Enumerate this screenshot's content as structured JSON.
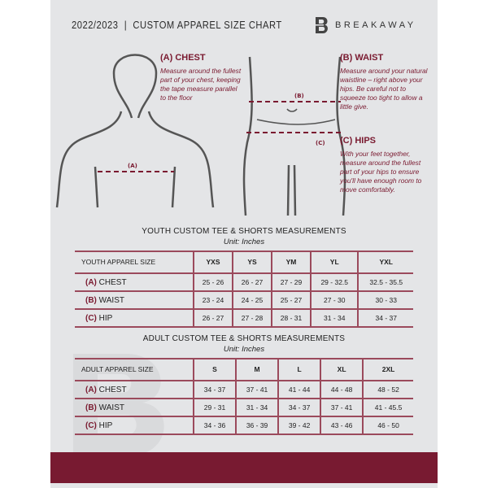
{
  "header": {
    "title": "2022/2023  |  CUSTOM APPAREL SIZE CHART",
    "brand": "BREAKAWAY",
    "logo_letter": "B"
  },
  "guide": {
    "chest": {
      "heading": "(A) CHEST",
      "text": "Measure around the fullest part of your chest, keeping the tape measure parallel to the floor",
      "marker": "(A)"
    },
    "waist": {
      "heading": "(B) WAIST",
      "text": "Measure around your natural waistline – right above your hips. Be careful not to squeeze too tight to allow a little give.",
      "marker": "(B)"
    },
    "hips": {
      "heading": "(C) HIPS",
      "text": "With your feet together, measure around the fullest part of your hips to ensure you'll have enough room to move comfortably.",
      "marker": "(C)"
    }
  },
  "youth": {
    "title": "YOUTH CUSTOM TEE & SHORTS MEASUREMENTS",
    "unit": "Unit: Inches",
    "header": "YOUTH APPAREL SIZE",
    "sizes": [
      "YXS",
      "YS",
      "YM",
      "YL",
      "YXL"
    ],
    "rows": [
      {
        "letter": "(A)",
        "name": "CHEST",
        "values": [
          "25 - 26",
          "26 - 27",
          "27 - 29",
          "29 - 32.5",
          "32.5 - 35.5"
        ]
      },
      {
        "letter": "(B)",
        "name": "WAIST",
        "values": [
          "23 - 24",
          "24 - 25",
          "25 - 27",
          "27 - 30",
          "30 - 33"
        ]
      },
      {
        "letter": "(C)",
        "name": "HIP",
        "values": [
          "26 - 27",
          "27 - 28",
          "28 - 31",
          "31 - 34",
          "34 - 37"
        ]
      }
    ]
  },
  "adult": {
    "title": "ADULT CUSTOM TEE & SHORTS MEASUREMENTS",
    "unit": "Unit: Inches",
    "header": "ADULT APPAREL SIZE",
    "sizes": [
      "S",
      "M",
      "L",
      "XL",
      "2XL"
    ],
    "rows": [
      {
        "letter": "(A)",
        "name": "CHEST",
        "values": [
          "34 - 37",
          "37 - 41",
          "41 - 44",
          "44 - 48",
          "48 - 52"
        ]
      },
      {
        "letter": "(B)",
        "name": "WAIST",
        "values": [
          "29 - 31",
          "31 - 34",
          "34 - 37",
          "37 - 41",
          "41 - 45.5"
        ]
      },
      {
        "letter": "(C)",
        "name": "HIP",
        "values": [
          "34 - 36",
          "36 - 39",
          "39 - 42",
          "43 - 46",
          "46 - 50"
        ]
      }
    ]
  },
  "colors": {
    "accent": "#7a1a30",
    "background": "#e4e5e7"
  }
}
